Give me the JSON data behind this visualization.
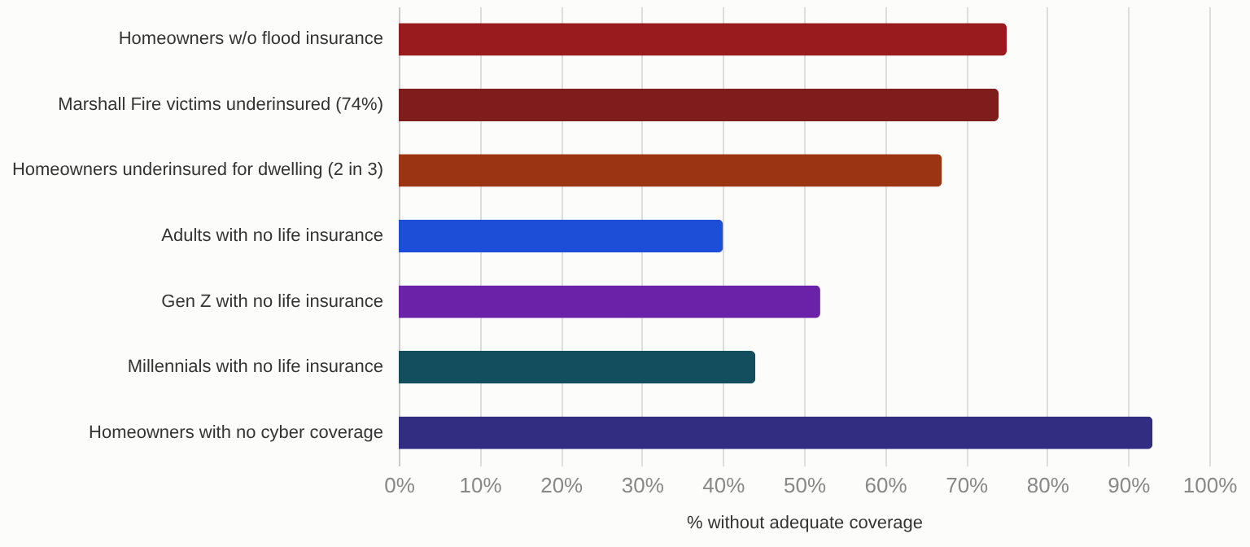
{
  "chart_data": {
    "type": "bar",
    "orientation": "horizontal",
    "xlabel": "% without adequate coverage",
    "categories": [
      "Homeowners w/o flood insurance",
      "Marshall Fire victims underinsured (74%)",
      "Homeowners underinsured for dwelling (2 in 3)",
      "Adults with no life insurance",
      "Gen Z with no life insurance",
      "Millennials with no life insurance",
      "Homeowners with no cyber coverage"
    ],
    "values": [
      75,
      74,
      67,
      40,
      52,
      44,
      93
    ],
    "colors": [
      "#991b1e",
      "#7f1d1d",
      "#9a3412",
      "#1d4ed8",
      "#6b21a8",
      "#134e5e",
      "#312e81"
    ],
    "xlim": [
      0,
      100
    ],
    "xticks": [
      {
        "value": 0,
        "label": "0%"
      },
      {
        "value": 10,
        "label": "10%"
      },
      {
        "value": 20,
        "label": "20%"
      },
      {
        "value": 30,
        "label": "30%"
      },
      {
        "value": 40,
        "label": "40%"
      },
      {
        "value": 50,
        "label": "50%"
      },
      {
        "value": 60,
        "label": "60%"
      },
      {
        "value": 70,
        "label": "70%"
      },
      {
        "value": 80,
        "label": "80%"
      },
      {
        "value": 90,
        "label": "90%"
      },
      {
        "value": 100,
        "label": "100%"
      }
    ],
    "grid": "x",
    "legend": false
  }
}
